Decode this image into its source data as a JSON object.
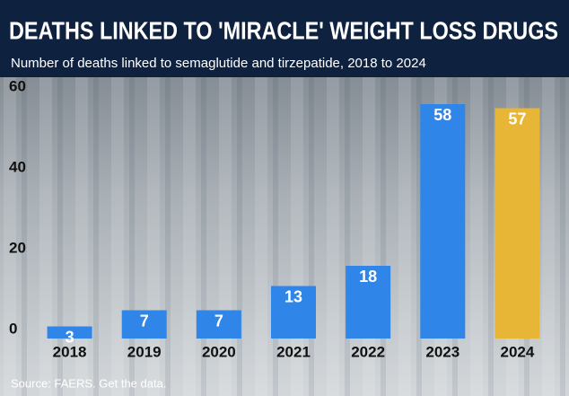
{
  "chart_data": {
    "type": "bar",
    "title": "DEATHS LINKED TO 'MIRACLE' WEIGHT LOSS DRUGS",
    "subtitle": "Number of deaths linked to semaglutide and tirzepatide, 2018 to 2024",
    "source": "Source: FAERS. Get the data.",
    "categories": [
      "2018",
      "2019",
      "2020",
      "2021",
      "2022",
      "2023",
      "2024"
    ],
    "values": [
      3,
      7,
      7,
      13,
      18,
      58,
      57
    ],
    "colors": [
      "#2f86e8",
      "#2f86e8",
      "#2f86e8",
      "#2f86e8",
      "#2f86e8",
      "#2f86e8",
      "#e8b636"
    ],
    "ylim": [
      0,
      60
    ],
    "yticks": [
      0,
      20,
      40,
      60
    ],
    "grid": false
  }
}
